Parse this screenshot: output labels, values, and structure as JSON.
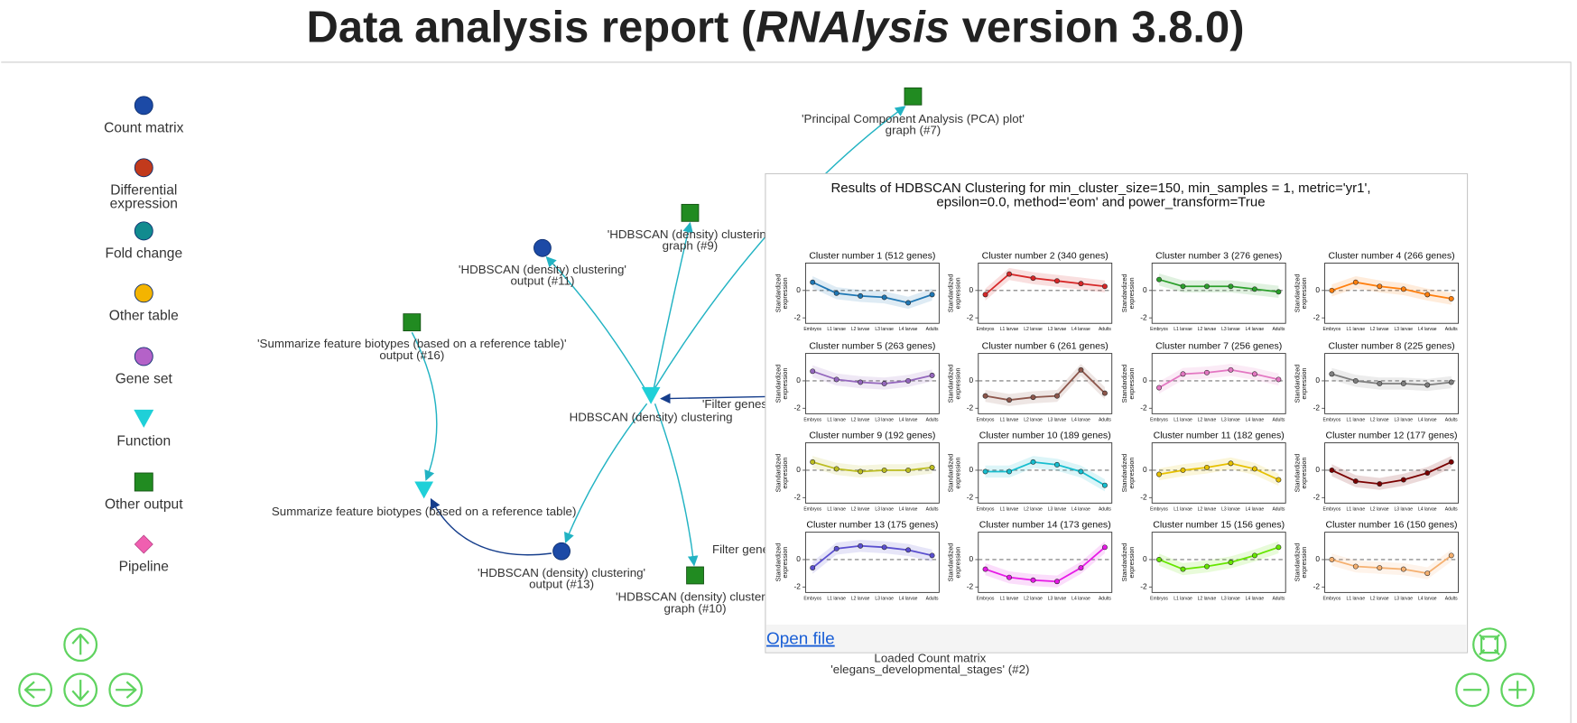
{
  "header": {
    "title": {
      "before": "Data analysis report (",
      "italic": "RNAlysis",
      "after": " version 3.8.0)"
    }
  },
  "legend": [
    {
      "kind": "circle",
      "color": "#1c4aa6",
      "lines": [
        "Count matrix"
      ]
    },
    {
      "kind": "circle",
      "color": "#c23a1c",
      "lines": [
        "Differential",
        "expression"
      ]
    },
    {
      "kind": "circle",
      "color": "#118b8f",
      "lines": [
        "Fold change"
      ]
    },
    {
      "kind": "circle",
      "color": "#f4b400",
      "lines": [
        "Other table"
      ]
    },
    {
      "kind": "circle",
      "color": "#b462c8",
      "lines": [
        "Gene set"
      ]
    },
    {
      "kind": "triangle",
      "color": "#1fd0d8",
      "lines": [
        "Function"
      ]
    },
    {
      "kind": "square",
      "color": "#218b21",
      "lines": [
        "Other output"
      ]
    },
    {
      "kind": "diamond",
      "color": "#f05fb0",
      "lines": [
        "Pipeline"
      ]
    }
  ],
  "nodes": [
    {
      "kind": "square",
      "lines": [
        "'Principal Component Analysis (PCA) plot'",
        "graph (#7)"
      ]
    },
    {
      "kind": "square",
      "lines": [
        "'HDBSCAN (density) clustering",
        "graph (#9)"
      ]
    },
    {
      "kind": "circle",
      "lines": [
        "'HDBSCAN (density) clustering'",
        "output (#11)"
      ]
    },
    {
      "kind": "square",
      "lines": [
        "'Summarize feature biotypes (based on a reference table)'",
        "output (#16)"
      ]
    },
    {
      "kind": "triangle",
      "lines": [
        "HDBSCAN (density) clustering"
      ]
    },
    {
      "kind": "triangle",
      "lines": [
        "Summarize feature biotypes (based on a reference table)"
      ]
    },
    {
      "kind": "circle",
      "lines": [
        "'HDBSCAN (density) clustering'",
        "output (#13)"
      ]
    },
    {
      "kind": "square",
      "lines": [
        "'HDBSCAN (density) clusterin",
        "graph (#10)"
      ]
    },
    {
      "kind": "text",
      "lines": [
        "'Filter genes"
      ]
    },
    {
      "kind": "text",
      "lines": [
        "Filter gene"
      ]
    },
    {
      "kind": "text",
      "lines": [
        "Loaded Count matrix",
        "'elegans_developmental_stages' (#2)"
      ]
    }
  ],
  "popup": {
    "title_lines": [
      "Results of HDBSCAN Clustering for min_cluster_size=150, min_samples = 1, metric='yr1',",
      "epsilon=0.0, method='eom' and power_transform=True"
    ],
    "y_label_lines": [
      "Standardized",
      "expression"
    ],
    "x_labels": [
      "Embryos",
      "L1 larvae",
      "L2 larvae",
      "L3 larvae",
      "L4 larvae",
      "Adults"
    ],
    "ylim": [
      -2.4,
      2
    ],
    "yticks": [
      -2,
      0
    ],
    "clusters": [
      {
        "title": "Cluster number 1 (512 genes)",
        "color": "#1f77b4",
        "values": [
          0.6,
          -0.2,
          -0.4,
          -0.5,
          -0.9,
          -0.3
        ]
      },
      {
        "title": "Cluster number 2 (340 genes)",
        "color": "#d62728",
        "values": [
          -0.3,
          1.2,
          0.9,
          0.7,
          0.5,
          0.3
        ]
      },
      {
        "title": "Cluster number 3 (276 genes)",
        "color": "#2ca02c",
        "values": [
          0.8,
          0.3,
          0.3,
          0.3,
          0.1,
          -0.1
        ]
      },
      {
        "title": "Cluster number 4 (266 genes)",
        "color": "#ff7f0e",
        "values": [
          0,
          0.6,
          0.3,
          0.1,
          -0.3,
          -0.6
        ]
      },
      {
        "title": "Cluster number 5 (263 genes)",
        "color": "#9467bd",
        "values": [
          0.7,
          0.1,
          -0.1,
          -0.2,
          0,
          0.4
        ]
      },
      {
        "title": "Cluster number 6 (261 genes)",
        "color": "#8c564b",
        "values": [
          -1.1,
          -1.4,
          -1.2,
          -1.1,
          0.8,
          -0.9
        ]
      },
      {
        "title": "Cluster number 7 (256 genes)",
        "color": "#e377c2",
        "values": [
          -0.5,
          0.5,
          0.6,
          0.8,
          0.5,
          0.1
        ]
      },
      {
        "title": "Cluster number 8 (225 genes)",
        "color": "#7f7f7f",
        "values": [
          0.5,
          0,
          -0.2,
          -0.2,
          -0.3,
          -0.1
        ]
      },
      {
        "title": "Cluster number 9 (192 genes)",
        "color": "#bcbd22",
        "values": [
          0.6,
          0.1,
          -0.1,
          0,
          0,
          0.2
        ]
      },
      {
        "title": "Cluster number 10 (189 genes)",
        "color": "#17becf",
        "values": [
          -0.1,
          -0.1,
          0.6,
          0.4,
          -0.1,
          -1.1
        ]
      },
      {
        "title": "Cluster number 11 (182 genes)",
        "color": "#e6c000",
        "values": [
          -0.3,
          0,
          0.2,
          0.5,
          0.1,
          -0.7
        ]
      },
      {
        "title": "Cluster number 12 (177 genes)",
        "color": "#7a0000",
        "values": [
          0,
          -0.8,
          -1,
          -0.7,
          -0.2,
          0.6
        ]
      },
      {
        "title": "Cluster number 13 (175 genes)",
        "color": "#5a4fcf",
        "values": [
          -0.6,
          0.8,
          1,
          0.9,
          0.7,
          0.3
        ]
      },
      {
        "title": "Cluster number 14 (173 genes)",
        "color": "#e619e6",
        "values": [
          -0.7,
          -1.3,
          -1.5,
          -1.6,
          -0.6,
          0.9
        ]
      },
      {
        "title": "Cluster number 15 (156 genes)",
        "color": "#66e600",
        "values": [
          0,
          -0.7,
          -0.5,
          -0.2,
          0.3,
          0.9
        ]
      },
      {
        "title": "Cluster number 16 (150 genes)",
        "color": "#f5b070",
        "values": [
          0,
          -0.5,
          -0.6,
          -0.7,
          -1.0,
          0.3
        ]
      }
    ],
    "link": "Open file"
  }
}
